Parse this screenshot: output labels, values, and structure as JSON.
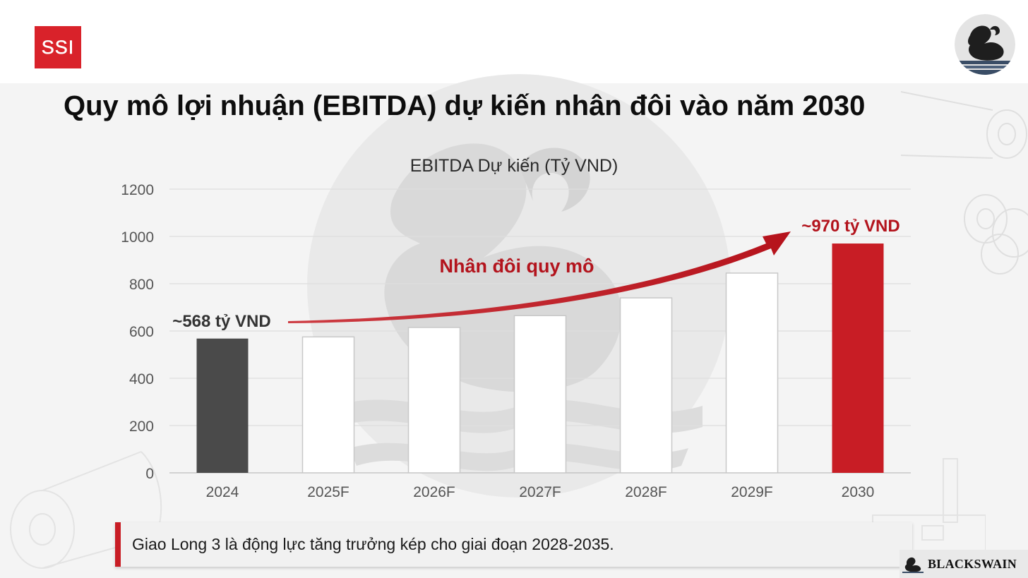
{
  "header": {
    "logo_text": "SSI",
    "title": "Quy mô lợi nhuận (EBITDA) dự kiến nhân đôi vào năm 2030"
  },
  "colors": {
    "accent_red": "#c81d25",
    "actual_bar": "#4a4a4a",
    "forecast_bar_stroke": "#c8c8c8",
    "grid": "#dedede"
  },
  "chart_data": {
    "type": "bar",
    "title": "EBITDA Dự kiến (Tỷ VND)",
    "xlabel": "",
    "ylabel": "",
    "categories": [
      "2024",
      "2025F",
      "2026F",
      "2027F",
      "2028F",
      "2029F",
      "2030"
    ],
    "values": [
      568,
      575,
      615,
      665,
      740,
      845,
      970
    ],
    "bar_styles": [
      "actual",
      "forecast",
      "forecast",
      "forecast",
      "forecast",
      "forecast",
      "highlight"
    ],
    "ylim": [
      0,
      1200
    ],
    "yticks": [
      0,
      200,
      400,
      600,
      800,
      1000,
      1200
    ],
    "grid": true,
    "annotations": {
      "start_label": "~568 tỷ VND",
      "end_label": "~970 tỷ VND",
      "arrow_label": "Nhân đôi quy mô"
    }
  },
  "callout": {
    "text": "Giao Long 3 là động lực tăng trưởng kép cho giai đoạn 2028-2035."
  },
  "footer": {
    "brand": "BLACKSWAIN"
  },
  "icons": [
    "ssi-logo",
    "black-swan-logo-icon",
    "swan-watermark-icon",
    "paper-roll-icon",
    "factory-icon"
  ]
}
